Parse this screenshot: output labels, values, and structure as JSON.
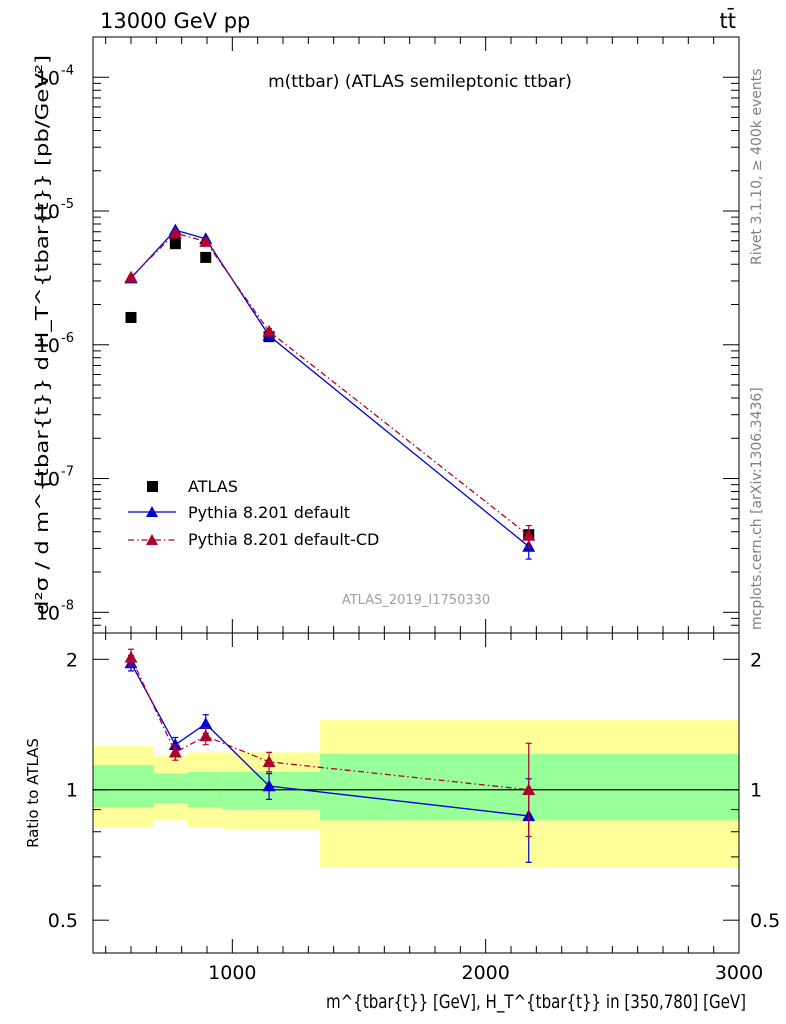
{
  "header": {
    "energy_label": "13000 GeV pp",
    "process_label": "tt̄"
  },
  "side_labels": {
    "rivet": "Rivet 3.1.10, ≥ 400k events",
    "mcplots": "mcplots.cern.ch [arXiv:1306.3436]"
  },
  "chart_data": [
    {
      "type": "scatter",
      "title": "m(ttbar) (ATLAS semileptonic ttbar)",
      "analysis_label": "ATLAS_2019_I1750330",
      "xlabel": "m^{tbar{t}} [GeV], H_T^{tbar{t}} in [350,780] [GeV]",
      "ylabel": "d²σ / d m^{tbar{t}} d H_T^{tbar{t}} [pb/GeV²]",
      "xlim": [
        450,
        3000
      ],
      "ylim": [
        7e-09,
        0.0002
      ],
      "yscale": "log",
      "x_ticks": [
        "1000",
        "2000",
        "3000"
      ],
      "y_ticks": [
        "10^-8",
        "10^-7",
        "10^-6",
        "10^-5",
        "10^-4"
      ],
      "legend_position": "lower-left",
      "series": [
        {
          "name": "ATLAS",
          "color": "#000000",
          "marker": "square",
          "x": [
            600,
            775,
            895,
            1145,
            2170
          ],
          "y": [
            1.6e-06,
            5.7e-06,
            4.5e-06,
            1.15e-06,
            3.8e-08
          ]
        },
        {
          "name": "Pythia 8.201 default",
          "color": "#0000cc",
          "marker": "triangle",
          "line": "solid",
          "x": [
            600,
            775,
            895,
            1145,
            2170
          ],
          "y": [
            3.15e-06,
            7.2e-06,
            6.2e-06,
            1.17e-06,
            3.1e-08
          ],
          "err": [
            5e-08,
            1e-07,
            1.2e-07,
            5e-08,
            6e-09
          ]
        },
        {
          "name": "Pythia 8.201 default-CD",
          "color": "#b00030",
          "marker": "triangle",
          "line": "dash-dot",
          "x": [
            600,
            775,
            895,
            1145,
            2170
          ],
          "y": [
            3.2e-06,
            6.85e-06,
            5.9e-06,
            1.26e-06,
            3.75e-08
          ],
          "err": [
            5e-08,
            1e-07,
            1.2e-07,
            6e-08,
            7e-09
          ]
        }
      ]
    },
    {
      "type": "scatter",
      "ylabel": "Ratio to ATLAS",
      "xlim": [
        450,
        3000
      ],
      "ylim": [
        0.42,
        2.3
      ],
      "yscale": "log",
      "y_ticks": [
        "0.5",
        "1",
        "2"
      ],
      "reference_line": 1,
      "uncertainty_bands": [
        {
          "x0": 450,
          "x1": 690,
          "inner": [
            0.91,
            1.14
          ],
          "outer": [
            0.82,
            1.26
          ]
        },
        {
          "x0": 690,
          "x1": 825,
          "inner": [
            0.93,
            1.09
          ],
          "outer": [
            0.85,
            1.2
          ]
        },
        {
          "x0": 825,
          "x1": 960,
          "inner": [
            0.91,
            1.1
          ],
          "outer": [
            0.82,
            1.22
          ]
        },
        {
          "x0": 960,
          "x1": 1345,
          "inner": [
            0.9,
            1.1
          ],
          "outer": [
            0.81,
            1.22
          ]
        },
        {
          "x0": 1345,
          "x1": 3000,
          "inner": [
            0.85,
            1.21
          ],
          "outer": [
            0.66,
            1.45
          ]
        }
      ],
      "series": [
        {
          "name": "Pythia 8.201 default",
          "color": "#0000cc",
          "marker": "triangle",
          "line": "solid",
          "x": [
            600,
            775,
            895,
            1145,
            2170
          ],
          "y": [
            1.96,
            1.27,
            1.42,
            1.02,
            0.87
          ],
          "err_low": [
            0.08,
            0.05,
            0.07,
            0.07,
            0.19
          ],
          "err_high": [
            0.08,
            0.05,
            0.07,
            0.07,
            0.19
          ]
        },
        {
          "name": "Pythia 8.201 default-CD",
          "color": "#b00030",
          "marker": "triangle",
          "line": "dash-dot",
          "x": [
            600,
            775,
            895,
            1145,
            2170
          ],
          "y": [
            2.02,
            1.22,
            1.33,
            1.16,
            1.0
          ],
          "err_low": [
            0.09,
            0.05,
            0.06,
            0.06,
            0.22
          ],
          "err_high": [
            0.09,
            0.05,
            0.06,
            0.06,
            0.28
          ]
        }
      ]
    }
  ]
}
